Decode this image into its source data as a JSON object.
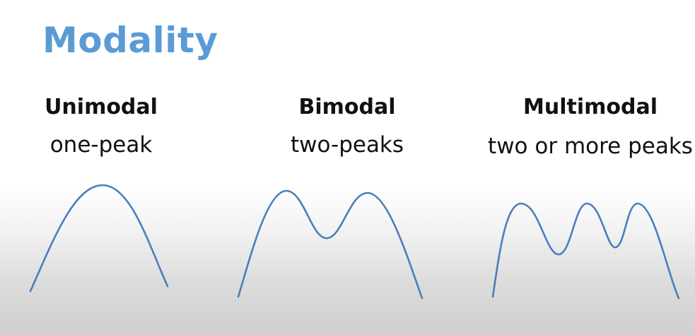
{
  "title": "Modality",
  "columns": [
    {
      "heading": "Unimodal",
      "description": "one-peak",
      "peaks": 1
    },
    {
      "heading": "Bimodal",
      "description": "two-peaks",
      "peaks": 2
    },
    {
      "heading": "Multimodal",
      "description": "two or more peaks",
      "peaks": 3
    }
  ],
  "colors": {
    "title": "#5b9bd5",
    "curve": "#4a7ebb",
    "text": "#111111"
  }
}
